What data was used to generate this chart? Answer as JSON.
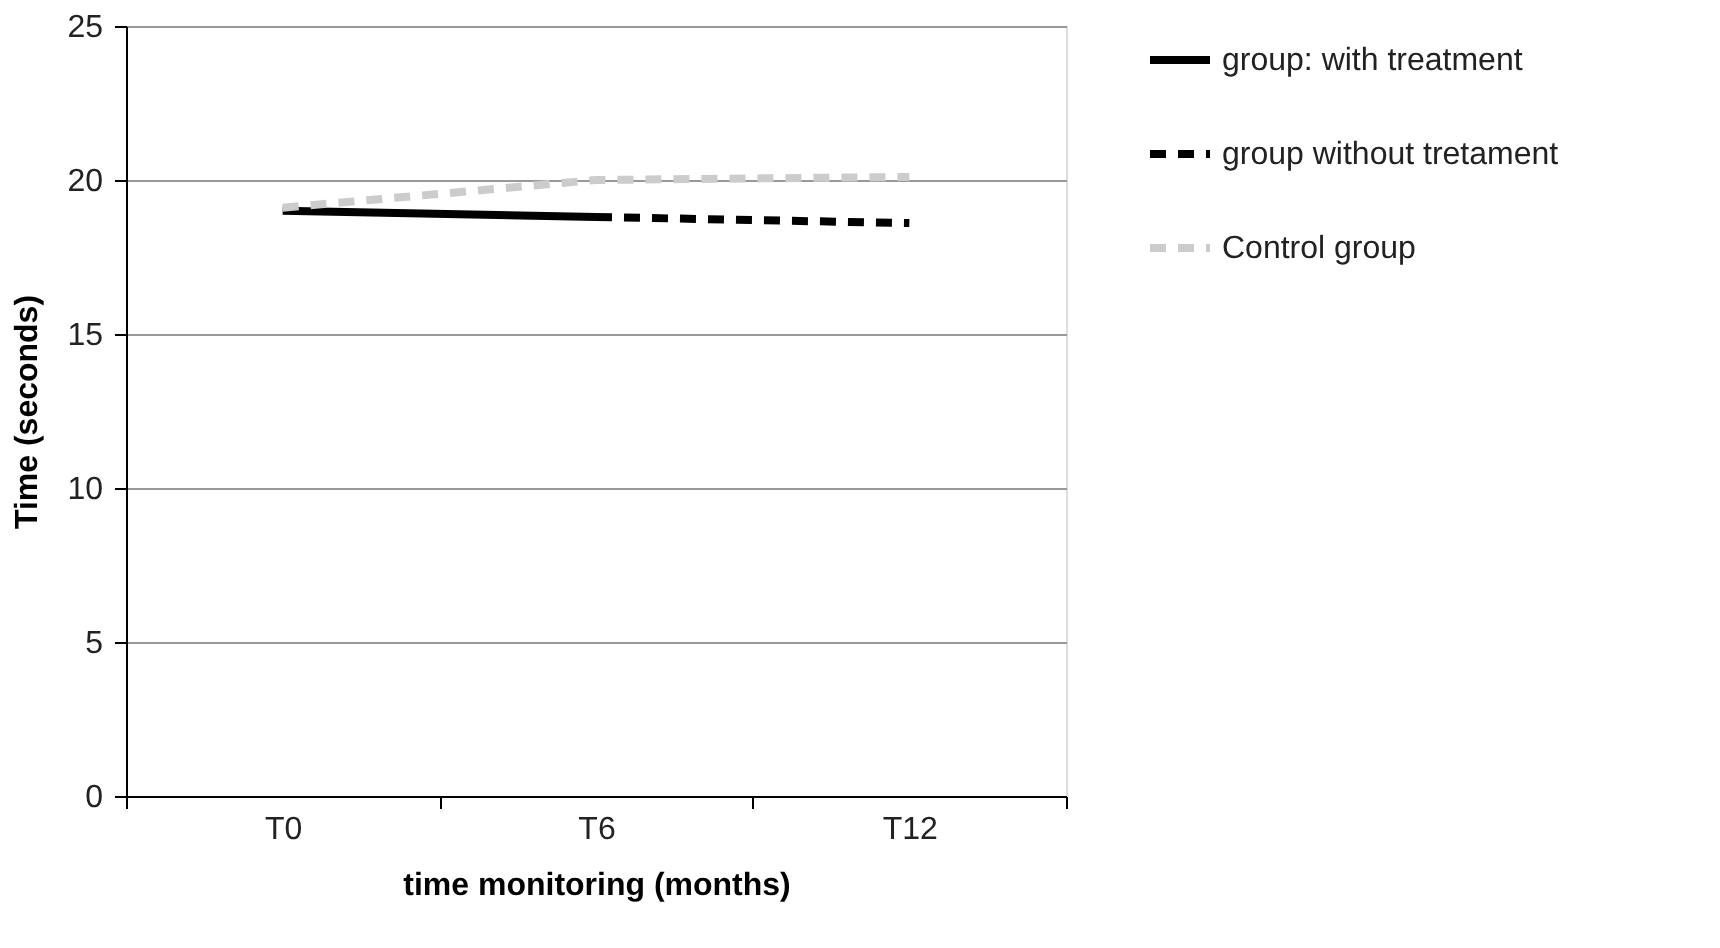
{
  "chart_data": {
    "type": "line",
    "xlabel": "time monitoring (months)",
    "ylabel": "Time (seconds)",
    "categories": [
      "T0",
      "T6",
      "T12"
    ],
    "series": [
      {
        "name": "group: with treatment",
        "color": "#000000",
        "line_style": "solid",
        "values": [
          19.0,
          18.8,
          null
        ]
      },
      {
        "name": "group without tretament",
        "color": "#000000",
        "line_style": "dashed",
        "values": [
          null,
          18.8,
          18.6
        ]
      },
      {
        "name": "Control group",
        "color": "#cccccc",
        "line_style": "dashed",
        "values": [
          19.1,
          20.0,
          20.1
        ]
      }
    ],
    "ylim": [
      0,
      25
    ],
    "yticks": [
      0,
      5,
      10,
      15,
      20,
      25
    ],
    "grid": "y",
    "legend": "right"
  }
}
